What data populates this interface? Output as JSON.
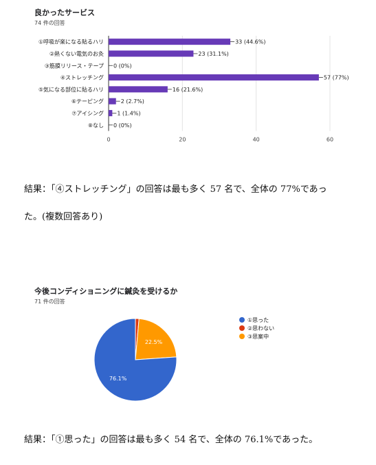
{
  "bar_section": {
    "title": "良かったサービス",
    "subtitle": "74 件の回答",
    "result_line1": "結果：「④ストレッチング」の回答は最も多く 57 名で、全体の 77%であっ",
    "result_line2": "た。(複数回答あり)"
  },
  "pie_section": {
    "title": "今後コンディショニングに鍼灸を受けるか",
    "subtitle": "71 件の回答",
    "result_line": "結果：「①思った」の回答は最も多く 54 名で、全体の 76.1%であった。"
  },
  "chart_data": [
    {
      "type": "bar",
      "orientation": "horizontal",
      "title": "良かったサービス",
      "subtitle": "74 件の回答",
      "categories": [
        "①呼吸が楽になる貼るハリ",
        "②熱くない電気のお灸",
        "③筋膜リリース・テープ",
        "④ストレッチング",
        "⑤気になる部位に貼るハリ",
        "⑥テーピング",
        "⑦アイシング",
        "⑧なし"
      ],
      "values": [
        33,
        23,
        0,
        57,
        16,
        2,
        1,
        0
      ],
      "data_labels": [
        "33 (44.6%)",
        "23 (31.1%)",
        "0 (0%)",
        "57 (77%)",
        "16 (21.6%)",
        "2 (2.7%)",
        "1 (1.4%)",
        "0 (0%)"
      ],
      "xlim": [
        0,
        60
      ],
      "xticks": [
        0,
        20,
        40,
        60
      ],
      "bar_color": "#673ab7",
      "grid": true
    },
    {
      "type": "pie",
      "title": "今後コンディショニングに鍼灸を受けるか",
      "subtitle": "71 件の回答",
      "labels": [
        "①思った",
        "②思わない",
        "③思案中"
      ],
      "values": [
        76.1,
        1.4,
        22.5
      ],
      "slice_labels": [
        "76.1%",
        "",
        "22.5%"
      ],
      "colors": [
        "#3366cc",
        "#dc3912",
        "#ff9900"
      ],
      "legend_position": "right"
    }
  ]
}
